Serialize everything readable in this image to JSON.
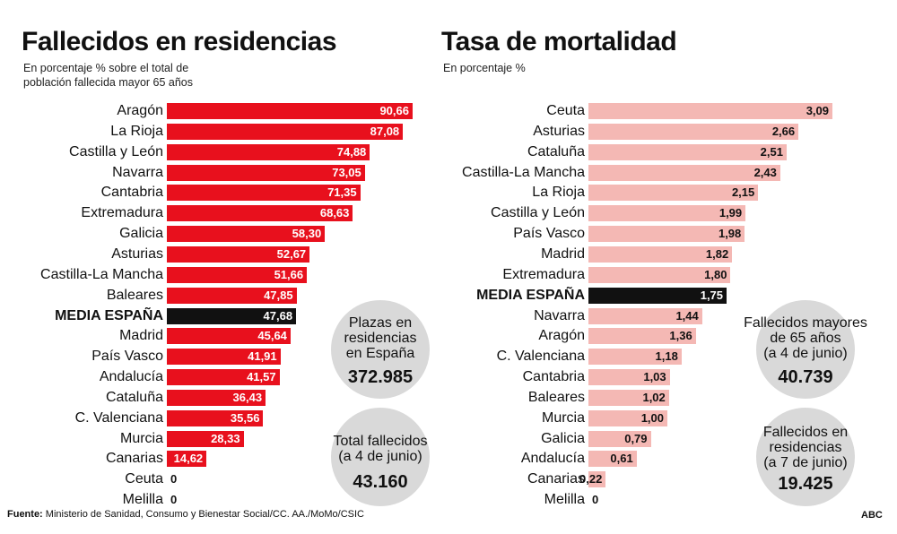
{
  "chart_data": [
    {
      "type": "bar",
      "orientation": "horizontal",
      "title": "Fallecidos en residencias",
      "subtitle": "En porcentaje % sobre el total de población fallecida mayor 65 años",
      "categories": [
        "Aragón",
        "La Rioja",
        "Castilla y León",
        "Navarra",
        "Cantabria",
        "Extremadura",
        "Galicia",
        "Asturias",
        "Castilla-La Mancha",
        "Baleares",
        "MEDIA ESPAÑA",
        "Madrid",
        "País Vasco",
        "Andalucía",
        "Cataluña",
        "C. Valenciana",
        "Murcia",
        "Canarias",
        "Ceuta",
        "Melilla"
      ],
      "values": [
        90.66,
        87.08,
        74.88,
        73.05,
        71.35,
        68.63,
        58.3,
        52.67,
        51.66,
        47.85,
        47.68,
        45.64,
        41.91,
        41.57,
        36.43,
        35.56,
        28.33,
        14.62,
        0,
        0
      ],
      "value_labels": [
        "90,66",
        "87,08",
        "74,88",
        "73,05",
        "71,35",
        "68,63",
        "58,30",
        "52,67",
        "51,66",
        "47,85",
        "47,68",
        "45,64",
        "41,91",
        "41,57",
        "36,43",
        "35,56",
        "28,33",
        "14,62",
        "0",
        "0"
      ],
      "highlight": "MEDIA ESPAÑA",
      "colors": {
        "bar": "#e8101d",
        "highlight": "#111111",
        "value_text": "#ffffff"
      },
      "annotations": [
        {
          "lines": [
            "Plazas en",
            "residencias",
            "en España"
          ],
          "value": "372.985"
        },
        {
          "lines": [
            "Total fallecidos",
            "(a 4 de junio)"
          ],
          "value": "43.160"
        }
      ]
    },
    {
      "type": "bar",
      "orientation": "horizontal",
      "title": "Tasa de mortalidad",
      "subtitle": "En porcentaje %",
      "categories": [
        "Ceuta",
        "Asturias",
        "Cataluña",
        "Castilla-La Mancha",
        "La Rioja",
        "Castilla y León",
        "País Vasco",
        "Madrid",
        "Extremadura",
        "MEDIA ESPAÑA",
        "Navarra",
        "Aragón",
        "C. Valenciana",
        "Cantabria",
        "Baleares",
        "Murcia",
        "Galicia",
        "Andalucía",
        "Canarias",
        "Melilla"
      ],
      "values": [
        3.09,
        2.66,
        2.51,
        2.43,
        2.15,
        1.99,
        1.98,
        1.82,
        1.8,
        1.75,
        1.44,
        1.36,
        1.18,
        1.03,
        1.02,
        1.0,
        0.79,
        0.61,
        0.22,
        0
      ],
      "value_labels": [
        "3,09",
        "2,66",
        "2,51",
        "2,43",
        "2,15",
        "1,99",
        "1,98",
        "1,82",
        "1,80",
        "1,75",
        "1,44",
        "1,36",
        "1,18",
        "1,03",
        "1,02",
        "1,00",
        "0,79",
        "0,61",
        "0,22",
        "0"
      ],
      "highlight": "MEDIA ESPAÑA",
      "colors": {
        "bar": "#f4b8b4",
        "highlight": "#111111",
        "value_text": "#111111"
      },
      "annotations": [
        {
          "lines": [
            "Fallecidos mayores",
            "de 65 años",
            "(a 4 de junio)"
          ],
          "value": "40.739"
        },
        {
          "lines": [
            "Fallecidos en",
            "residencias",
            "(a 7 de junio)"
          ],
          "value": "19.425"
        }
      ]
    }
  ],
  "footer": {
    "source_label": "Fuente:",
    "source_text": " Ministerio de Sanidad, Consumo y Bienestar Social/CC. AA./MoMo/CSIC",
    "credit": "ABC"
  }
}
